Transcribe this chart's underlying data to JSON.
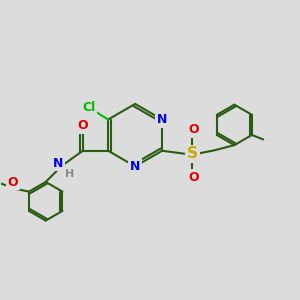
{
  "bg_color": "#dcdcdc",
  "bond_color": "#2a5c14",
  "bond_lw": 1.5,
  "atom_colors": {
    "N": "#0000ee",
    "O": "#dd0000",
    "S": "#ccaa00",
    "Cl": "#00bb00",
    "H": "#888888",
    "C": "#2a5c14"
  },
  "font_size": 9
}
